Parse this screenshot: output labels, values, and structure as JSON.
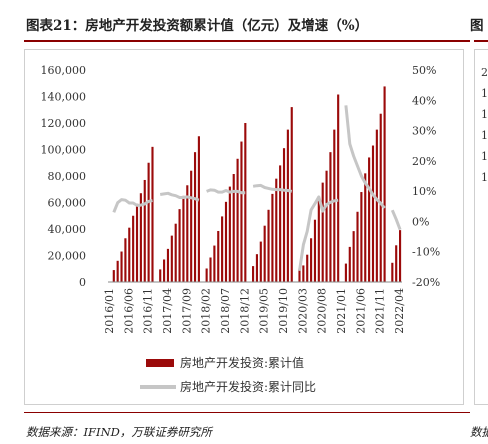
{
  "header": {
    "title": "图表21：房地产开发投资额累计值（亿元）及增速（%）",
    "next_title_fragment": "图"
  },
  "source": {
    "text": "数据来源：IFIND，万联证券研究所",
    "next_fragment": "数据"
  },
  "next_chart": {
    "tick_fragments": [
      "2",
      "1",
      "1",
      "1",
      "1",
      "1"
    ]
  },
  "chart_data": {
    "type": "bar",
    "colors": {
      "bar": "#9b0a0a",
      "line": "#c6c6c6"
    },
    "y_left": {
      "min": 0,
      "max": 160000,
      "step": 20000,
      "ticks": [
        "0",
        "20,000",
        "40,000",
        "60,000",
        "80,000",
        "100,000",
        "120,000",
        "140,000",
        "160,000"
      ]
    },
    "y_right": {
      "min": -20,
      "max": 50,
      "step": 10,
      "ticks": [
        "-20%",
        "-10%",
        "0%",
        "10%",
        "20%",
        "30%",
        "40%",
        "50%"
      ]
    },
    "x_tick_labels": [
      "2016/01",
      "2016/06",
      "2016/11",
      "2017/04",
      "2017/09",
      "2018/02",
      "2018/07",
      "2018/12",
      "2019/05",
      "2019/10",
      "2020/03",
      "2020/08",
      "2021/01",
      "2021/06",
      "2021/11",
      "2022/04"
    ],
    "x_tick_indices": [
      0,
      5,
      10,
      15,
      20,
      25,
      30,
      35,
      40,
      45,
      50,
      55,
      60,
      65,
      70,
      75
    ],
    "series": [
      {
        "name": "房地产开发投资:累计值",
        "axis": "left",
        "kind": "bar",
        "values": [
          null,
          9000,
          16000,
          23000,
          33000,
          41000,
          50000,
          59000,
          67000,
          77000,
          90000,
          102000,
          null,
          9500,
          17000,
          25000,
          35000,
          44000,
          55000,
          65000,
          73000,
          84000,
          98000,
          110000,
          null,
          10200,
          18500,
          27500,
          38500,
          49500,
          60500,
          72000,
          81500,
          93000,
          106000,
          120000,
          null,
          12000,
          21000,
          30500,
          42500,
          54500,
          66500,
          78000,
          88000,
          101000,
          115000,
          132000,
          null,
          10100,
          12500,
          20600,
          33000,
          47000,
          62000,
          75000,
          84000,
          98000,
          115000,
          141500,
          null,
          13900,
          26500,
          38400,
          53000,
          67900,
          82000,
          94000,
          103000,
          115000,
          127000,
          147600,
          null,
          14500,
          27700,
          39154
        ]
      },
      {
        "name": "房地产开发投资:累计同比",
        "axis": "right",
        "kind": "line",
        "values": [
          null,
          3.0,
          6.2,
          7.2,
          7.0,
          6.1,
          6.1,
          5.3,
          5.4,
          5.8,
          6.6,
          6.9,
          null,
          8.9,
          9.1,
          9.3,
          8.8,
          8.5,
          7.9,
          7.9,
          8.1,
          7.8,
          7.5,
          7.0,
          null,
          9.9,
          10.4,
          10.3,
          9.7,
          9.7,
          10.2,
          9.7,
          9.9,
          9.9,
          9.5,
          9.5,
          null,
          11.6,
          11.8,
          11.9,
          11.2,
          10.9,
          10.6,
          10.5,
          10.5,
          10.3,
          10.2,
          9.9,
          null,
          -16.3,
          -7.7,
          -3.3,
          3.8,
          5.9,
          8.1,
          3.4,
          5.6,
          6.3,
          6.8,
          7.0,
          null,
          38.3,
          25.6,
          21.6,
          18.3,
          15.0,
          12.7,
          10.9,
          8.8,
          7.2,
          6.0,
          4.4,
          null,
          3.7,
          0.7,
          -2.7
        ]
      }
    ]
  },
  "legend": {
    "bar_label": "房地产开发投资:累计值",
    "line_label": "房地产开发投资:累计同比"
  }
}
